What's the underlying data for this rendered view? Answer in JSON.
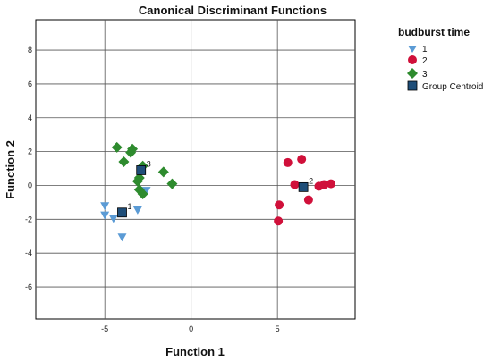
{
  "chart_data": {
    "type": "scatter",
    "title": "Canonical Discriminant Functions",
    "xlabel": "Function 1",
    "ylabel": "Function 2",
    "xlim": [
      -9.0,
      9.5
    ],
    "ylim": [
      -7.9,
      9.8
    ],
    "xticks": [
      -5,
      0,
      5
    ],
    "yticks": [
      8,
      6,
      4,
      2,
      0,
      -2,
      -4,
      -6
    ],
    "grid": true,
    "legend_title": "budburst time",
    "legend_position": "right",
    "series": [
      {
        "name": "1",
        "marker": "triangle-down",
        "color": "#5B9BD5",
        "points": [
          {
            "x": -5.0,
            "y": -1.2
          },
          {
            "x": -5.0,
            "y": -1.75
          },
          {
            "x": -4.5,
            "y": -1.95
          },
          {
            "x": -4.0,
            "y": -3.05
          },
          {
            "x": -3.1,
            "y": -1.45
          },
          {
            "x": -2.6,
            "y": -0.3
          }
        ]
      },
      {
        "name": "2",
        "marker": "circle",
        "color": "#D0103A",
        "points": [
          {
            "x": 5.6,
            "y": 1.35
          },
          {
            "x": 6.4,
            "y": 1.55
          },
          {
            "x": 6.0,
            "y": 0.05
          },
          {
            "x": 5.1,
            "y": -1.15
          },
          {
            "x": 5.05,
            "y": -2.1
          },
          {
            "x": 6.8,
            "y": -0.85
          },
          {
            "x": 7.4,
            "y": -0.05
          },
          {
            "x": 7.7,
            "y": 0.05
          },
          {
            "x": 8.1,
            "y": 0.1
          }
        ]
      },
      {
        "name": "3",
        "marker": "diamond",
        "color": "#2E8B2E",
        "points": [
          {
            "x": -4.3,
            "y": 2.25
          },
          {
            "x": -3.4,
            "y": 2.15
          },
          {
            "x": -3.5,
            "y": 1.95
          },
          {
            "x": -3.9,
            "y": 1.4
          },
          {
            "x": -2.8,
            "y": 1.15
          },
          {
            "x": -3.0,
            "y": 0.45
          },
          {
            "x": -3.1,
            "y": 0.25
          },
          {
            "x": -3.0,
            "y": -0.25
          },
          {
            "x": -2.8,
            "y": -0.5
          },
          {
            "x": -1.6,
            "y": 0.8
          },
          {
            "x": -1.1,
            "y": 0.1
          }
        ]
      }
    ],
    "centroids": {
      "name": "Group Centroid",
      "marker": "square",
      "color": "#1F4E79",
      "points": [
        {
          "label": "1",
          "x": -4.0,
          "y": -1.6
        },
        {
          "label": "2",
          "x": 6.5,
          "y": -0.1
        },
        {
          "label": "3",
          "x": -2.9,
          "y": 0.9
        }
      ]
    }
  }
}
